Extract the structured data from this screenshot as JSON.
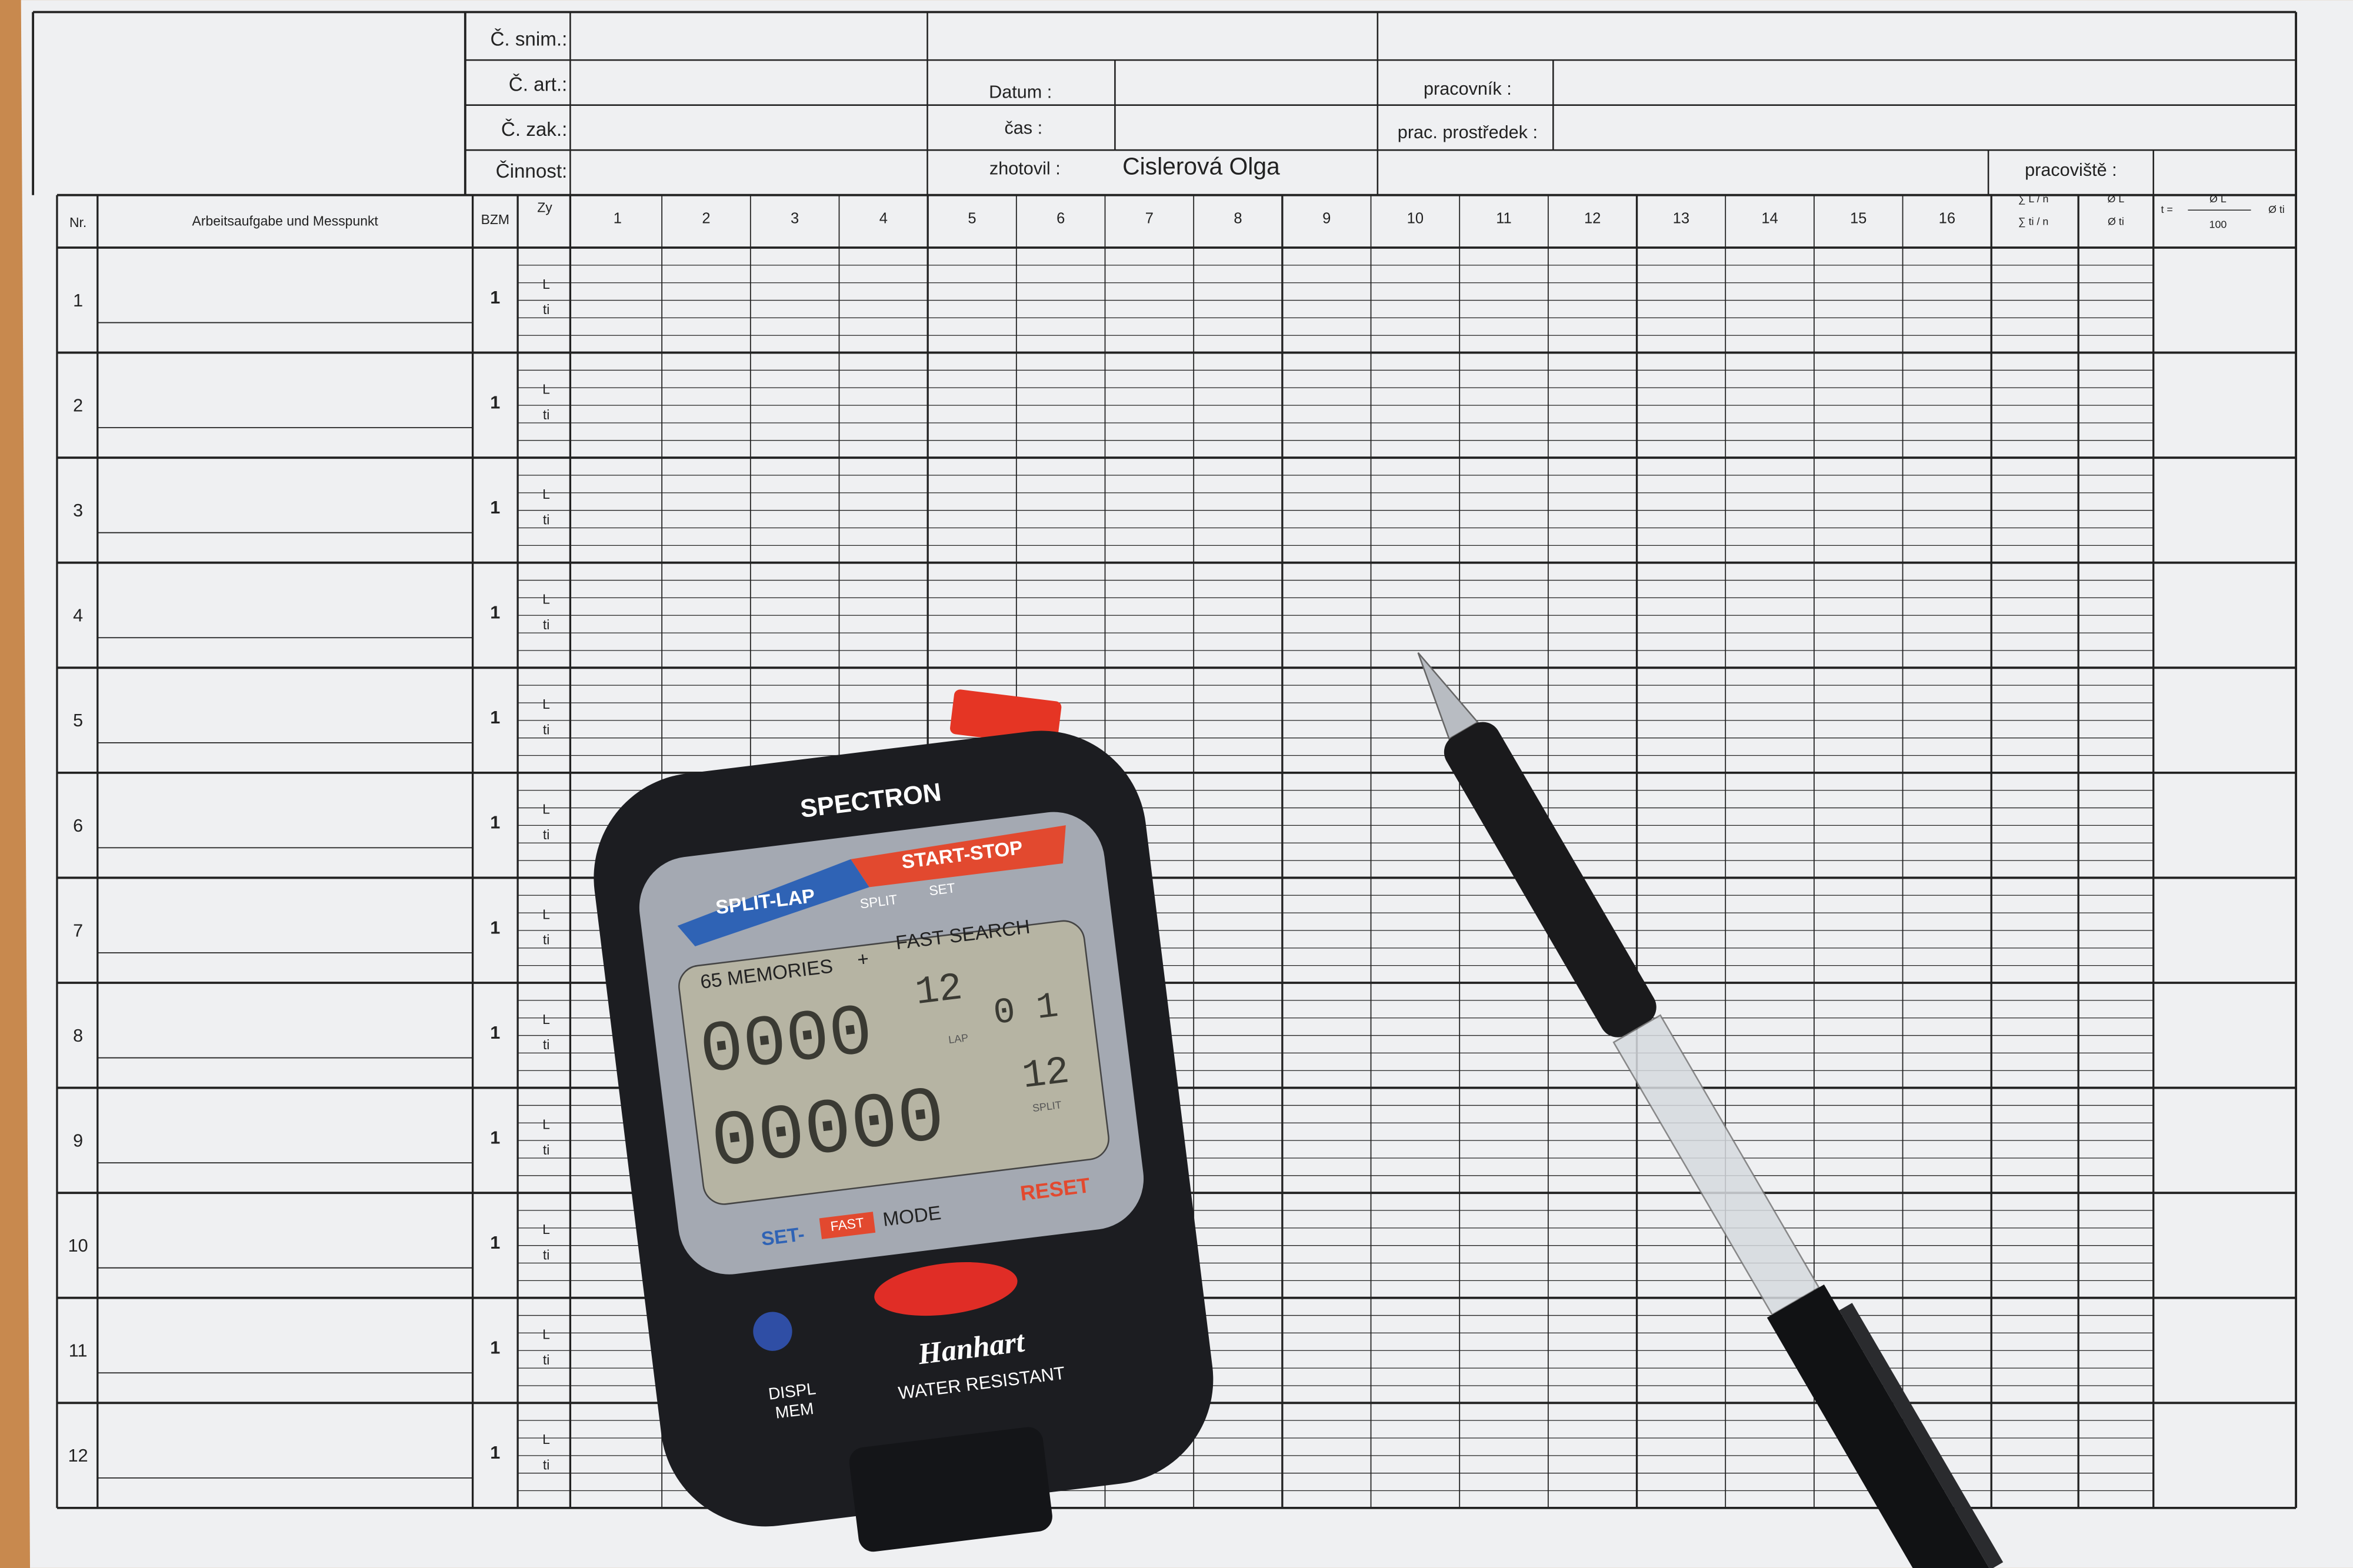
{
  "form": {
    "header": {
      "c_snim": "Č. snim.:",
      "c_art": "Č. art.:",
      "c_zak": "Č. zak.:",
      "cinnost": "Činnost:",
      "datum": "Datum :",
      "cas": "čas :",
      "zhotovil": "zhotovil :",
      "zhotovil_value": "Cislerová Olga",
      "pracovnik": "pracovník :",
      "prac_prostredek": "prac. prostředek :",
      "pracoviste": "pracoviště :"
    },
    "columns": {
      "nr": "Nr.",
      "task": "Arbeitsaufgabe und Messpunkt",
      "bzm": "BZM",
      "zy": "Zy",
      "cycles": [
        "1",
        "2",
        "3",
        "4",
        "5",
        "6",
        "7",
        "8",
        "9",
        "10",
        "11",
        "12",
        "13",
        "14",
        "15",
        "16"
      ],
      "sum_top": "∑ L / n",
      "sum_bottom": "∑ ti / n",
      "mean_top": "Ø L",
      "mean_bottom": "Ø ti",
      "t_prefix": "t =",
      "t_num": "Ø L",
      "t_den": "100",
      "t_suffix": "Ø ti"
    },
    "rows": [
      {
        "nr": "1",
        "bzm": "1",
        "l": "L",
        "ti": "ti"
      },
      {
        "nr": "2",
        "bzm": "1",
        "l": "L",
        "ti": "ti"
      },
      {
        "nr": "3",
        "bzm": "1",
        "l": "L",
        "ti": "ti"
      },
      {
        "nr": "4",
        "bzm": "1",
        "l": "L",
        "ti": "ti"
      },
      {
        "nr": "5",
        "bzm": "1",
        "l": "L",
        "ti": "ti"
      },
      {
        "nr": "6",
        "bzm": "1",
        "l": "L",
        "ti": "ti"
      },
      {
        "nr": "7",
        "bzm": "1",
        "l": "L",
        "ti": "ti"
      },
      {
        "nr": "8",
        "bzm": "1",
        "l": "L",
        "ti": "ti"
      },
      {
        "nr": "9",
        "bzm": "1",
        "l": "L",
        "ti": "ti"
      },
      {
        "nr": "10",
        "bzm": "1",
        "l": "L",
        "ti": "ti"
      },
      {
        "nr": "11",
        "bzm": "1",
        "l": "L",
        "ti": "ti"
      },
      {
        "nr": "12",
        "bzm": "1",
        "l": "L",
        "ti": "ti"
      }
    ]
  },
  "stopwatch": {
    "brand": "SPECTRON",
    "split_lap": "SPLIT-LAP",
    "start_stop": "START-STOP",
    "split": "SPLIT",
    "set": "SET",
    "memories": "65 MEMORIES",
    "plus": "+",
    "fast_search": "FAST SEARCH",
    "display_top": "0000",
    "display_top_small": "12",
    "indicator": "0 1",
    "lap": "LAP",
    "display_bottom": "00000",
    "display_bottom_small": "12",
    "split_label": "SPLIT",
    "set_bottom": "SET-",
    "fast": "FAST",
    "mode": "MODE",
    "reset": "RESET",
    "displ": "DISPL",
    "mem": "MEM",
    "maker": "Hanhart",
    "water": "WATER RESISTANT"
  }
}
